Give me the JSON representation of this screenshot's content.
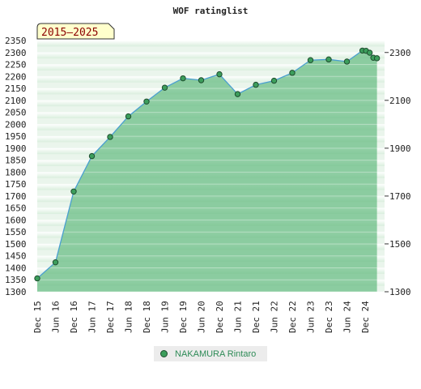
{
  "chart_data": {
    "type": "area",
    "title": "WOF ratinglist",
    "period_label": "2015–2025",
    "categories": [
      "Dec 15",
      "Jun 16",
      "Dec 16",
      "Jun 17",
      "Dec 17",
      "Jun 18",
      "Dec 18",
      "Jun 19",
      "Dec 19",
      "Jun 20",
      "Dec 20",
      "Jun 21",
      "Dec 21",
      "Jun 22",
      "Dec 22",
      "Jun 23",
      "Dec 23",
      "Jun 24",
      "Dec 24"
    ],
    "ylim": [
      1300,
      2350
    ],
    "left_ticks": [
      "1300",
      "1350",
      "1400",
      "1450",
      "1500",
      "1550",
      "1600",
      "1650",
      "1700",
      "1750",
      "1800",
      "1850",
      "1900",
      "1950",
      "2000",
      "2050",
      "2100",
      "2150",
      "2200",
      "2250",
      "2300",
      "2350"
    ],
    "right_ticks": [
      "1300",
      "1500",
      "1700",
      "1900",
      "2100",
      "2300"
    ],
    "grid": true,
    "series": [
      {
        "name": "NAKAMURA Rintaro",
        "x": [
          0,
          1,
          2,
          3,
          4,
          5,
          6,
          7,
          8,
          9,
          10,
          11,
          12,
          13,
          14,
          15,
          16,
          17,
          17.85,
          18.05,
          18.25,
          18.45,
          18.65
        ],
        "values": [
          1356,
          1423,
          1719,
          1867,
          1947,
          2033,
          2095,
          2153,
          2192,
          2184,
          2209,
          2126,
          2165,
          2182,
          2215,
          2268,
          2271,
          2262,
          2308,
          2307,
          2299,
          2278,
          2276
        ]
      }
    ]
  }
}
